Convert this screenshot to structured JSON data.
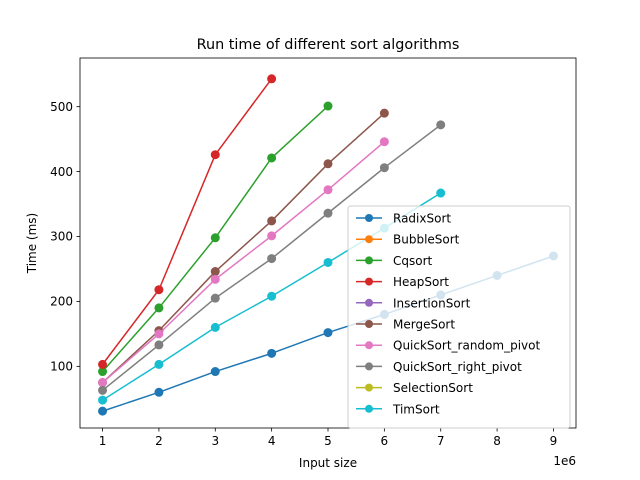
{
  "chart_data": {
    "type": "line",
    "title": "Run time of different sort algorithms",
    "xlabel": "Input size",
    "ylabel": "Time (ms)",
    "x_offset_label": "1e6",
    "xlim": [
      0.6,
      9.4
    ],
    "ylim": [
      5,
      575
    ],
    "xticks": [
      1,
      2,
      3,
      4,
      5,
      6,
      7,
      8,
      9
    ],
    "yticks": [
      100,
      200,
      300,
      400,
      500
    ],
    "grid": false,
    "legend_position": "lower-right",
    "series": [
      {
        "name": "RadixSort",
        "color": "#1f77b4",
        "x": [
          1,
          2,
          3,
          4,
          5,
          6,
          7,
          8,
          9
        ],
        "y": [
          31,
          60,
          92,
          120,
          152,
          180,
          210,
          240,
          270
        ]
      },
      {
        "name": "BubbleSort",
        "color": "#ff7f0e",
        "x": [],
        "y": []
      },
      {
        "name": "Cqsort",
        "color": "#2ca02c",
        "x": [
          1,
          2,
          3,
          4,
          5
        ],
        "y": [
          92,
          190,
          298,
          421,
          501
        ]
      },
      {
        "name": "HeapSort",
        "color": "#d62728",
        "x": [
          1,
          2,
          3,
          4
        ],
        "y": [
          103,
          218,
          426,
          543
        ]
      },
      {
        "name": "InsertionSort",
        "color": "#9467bd",
        "x": [],
        "y": []
      },
      {
        "name": "MergeSort",
        "color": "#8c564b",
        "x": [
          1,
          2,
          3,
          4,
          5,
          6
        ],
        "y": [
          75,
          155,
          246,
          324,
          412,
          490
        ]
      },
      {
        "name": "QuickSort_random_pivot",
        "color": "#e377c2",
        "x": [
          1,
          2,
          3,
          4,
          5,
          6
        ],
        "y": [
          75,
          150,
          234,
          301,
          372,
          446
        ]
      },
      {
        "name": "QuickSort_right_pivot",
        "color": "#7f7f7f",
        "x": [
          1,
          2,
          3,
          4,
          5,
          6,
          7
        ],
        "y": [
          63,
          133,
          205,
          266,
          336,
          406,
          472
        ]
      },
      {
        "name": "SelectionSort",
        "color": "#bcbd22",
        "x": [],
        "y": []
      },
      {
        "name": "TimSort",
        "color": "#17becf",
        "x": [
          1,
          2,
          3,
          4,
          5,
          6,
          7
        ],
        "y": [
          48,
          103,
          160,
          208,
          260,
          313,
          367
        ]
      }
    ]
  }
}
